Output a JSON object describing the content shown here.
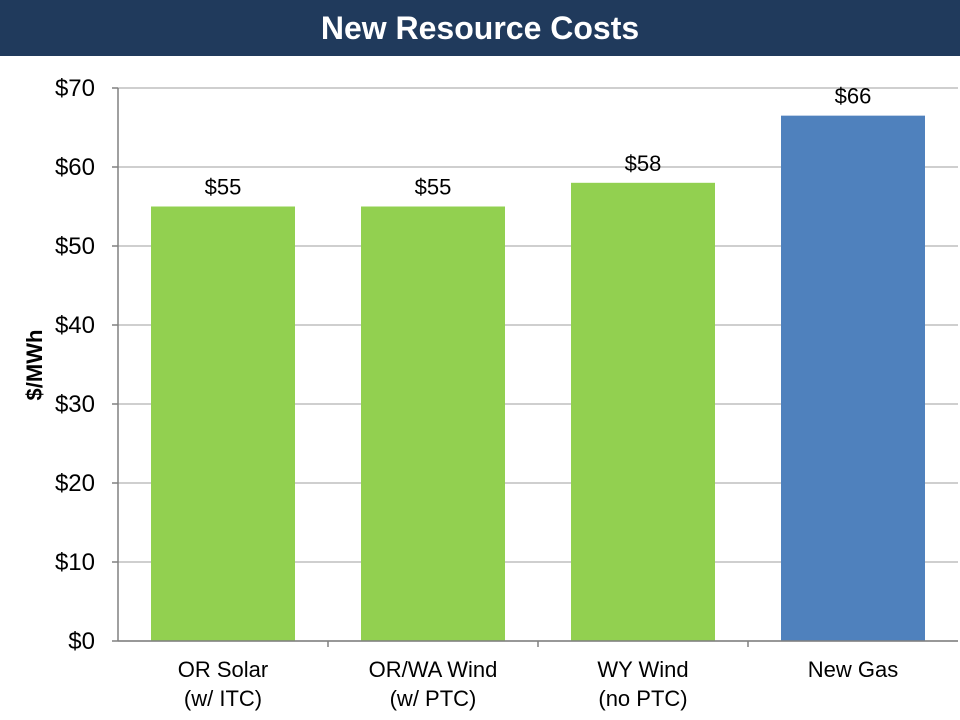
{
  "chart_data": {
    "type": "bar",
    "title": "New Resource Costs",
    "ylabel": "$/MWh",
    "xlabel": "",
    "categories": [
      [
        "OR Solar",
        "(w/ ITC)"
      ],
      [
        "OR/WA Wind",
        "(w/ PTC)"
      ],
      [
        "WY Wind",
        "(no PTC)"
      ],
      [
        "New Gas"
      ]
    ],
    "values": [
      55,
      55,
      58,
      66.5
    ],
    "data_labels": [
      "$55",
      "$55",
      "$58",
      "$66"
    ],
    "bar_colors": [
      "#92d050",
      "#92d050",
      "#92d050",
      "#4f81bd"
    ],
    "ylim": [
      0,
      70
    ],
    "yticks": [
      0,
      10,
      20,
      30,
      40,
      50,
      60,
      70
    ],
    "ytick_labels": [
      "$0",
      "$10",
      "$20",
      "$30",
      "$40",
      "$50",
      "$60",
      "$70"
    ],
    "grid": true,
    "legend": "none"
  },
  "colors": {
    "title_bar": "#203a5c",
    "title_text": "#ffffff",
    "gridline": "#bfbfbf",
    "axis": "#808080"
  }
}
